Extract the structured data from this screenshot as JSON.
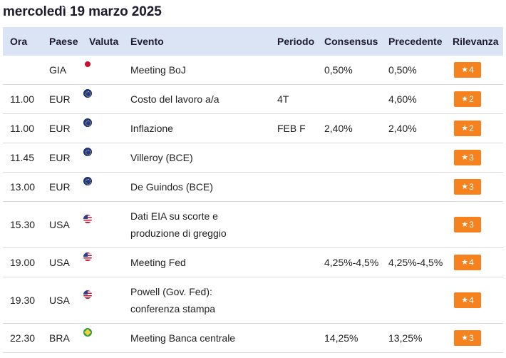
{
  "page_title": "mercoledì 19 marzo 2025",
  "colors": {
    "header_bg": "#dbe4f4",
    "badge": "#f5821f"
  },
  "headers": {
    "ora": "Ora",
    "paese": "Paese",
    "valuta": "Valuta",
    "evento": "Evento",
    "periodo": "Periodo",
    "consensus": "Consensus",
    "precedente": "Precedente",
    "rilevanza": "Rilevanza"
  },
  "rows": [
    {
      "ora": "",
      "paese": "GIA",
      "flag": "jp-flag-icon",
      "evento": "Meeting BoJ",
      "periodo": "",
      "consensus": "0,50%",
      "precedente": "0,50%",
      "rilevanza": "4"
    },
    {
      "ora": "11.00",
      "paese": "EUR",
      "flag": "eu-flag-icon",
      "evento": "Costo del lavoro a/a",
      "periodo": "4T",
      "consensus": "",
      "precedente": "4,60%",
      "rilevanza": "2"
    },
    {
      "ora": "11.00",
      "paese": "EUR",
      "flag": "eu-flag-icon",
      "evento": "Inflazione",
      "periodo": "FEB F",
      "consensus": "2,40%",
      "precedente": "2,40%",
      "rilevanza": "2"
    },
    {
      "ora": "11.45",
      "paese": "EUR",
      "flag": "eu-flag-icon",
      "evento": "Villeroy (BCE)",
      "periodo": "",
      "consensus": "",
      "precedente": "",
      "rilevanza": "3"
    },
    {
      "ora": "13.00",
      "paese": "EUR",
      "flag": "eu-flag-icon",
      "evento": "De Guindos (BCE)",
      "periodo": "",
      "consensus": "",
      "precedente": "",
      "rilevanza": "3"
    },
    {
      "ora": "15.30",
      "paese": "USA",
      "flag": "us-flag-icon",
      "evento": "Dati EIA su scorte e produzione di greggio",
      "periodo": "",
      "consensus": "",
      "precedente": "",
      "rilevanza": "3"
    },
    {
      "ora": "19.00",
      "paese": "USA",
      "flag": "us-flag-icon",
      "evento": "Meeting Fed",
      "periodo": "",
      "consensus": "4,25%-4,5%",
      "precedente": "4,25%-4,5%",
      "rilevanza": "4"
    },
    {
      "ora": "19.30",
      "paese": "USA",
      "flag": "us-flag-icon",
      "evento": "Powell (Gov. Fed): conferenza stampa",
      "periodo": "",
      "consensus": "",
      "precedente": "",
      "rilevanza": "4"
    },
    {
      "ora": "22.30",
      "paese": "BRA",
      "flag": "br-flag-icon",
      "evento": "Meeting Banca centrale",
      "periodo": "",
      "consensus": "14,25%",
      "precedente": "13,25%",
      "rilevanza": "3"
    }
  ]
}
